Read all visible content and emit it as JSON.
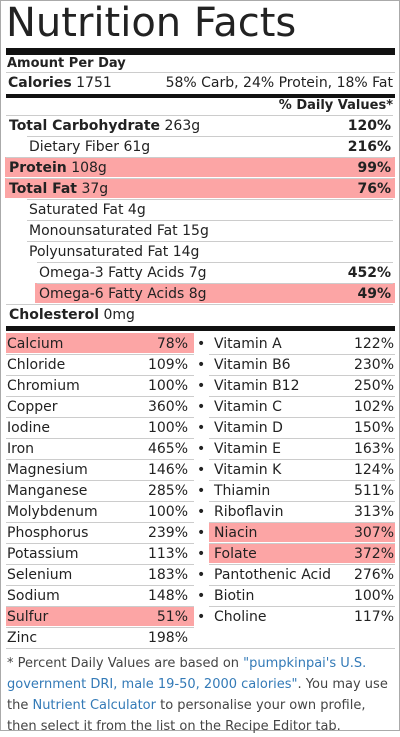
{
  "title": "Nutrition Facts",
  "amount_per": "Amount Per Day",
  "calories": {
    "label": "Calories",
    "value": "1751",
    "breakdown": "58% Carb, 24% Protein, 18% Fat"
  },
  "dv_header": "% Daily Values*",
  "macros": [
    {
      "label": "Total Carbohydrate",
      "amount": "263g",
      "dv": "120%",
      "bold": true,
      "highlight": false,
      "indent": 0
    },
    {
      "label": "Dietary Fiber",
      "amount": "61g",
      "dv": "216%",
      "bold": false,
      "highlight": false,
      "indent": 1
    },
    {
      "label": "Protein",
      "amount": "108g",
      "dv": "99%",
      "bold": true,
      "highlight": true,
      "indent": 0
    },
    {
      "label": "Total Fat",
      "amount": "37g",
      "dv": "76%",
      "bold": true,
      "highlight": true,
      "indent": 0
    },
    {
      "label": "Saturated Fat",
      "amount": "4g",
      "dv": "",
      "bold": false,
      "highlight": false,
      "indent": 1
    },
    {
      "label": "Monounsaturated Fat",
      "amount": "15g",
      "dv": "",
      "bold": false,
      "highlight": false,
      "indent": 1
    },
    {
      "label": "Polyunsaturated Fat",
      "amount": "14g",
      "dv": "",
      "bold": false,
      "highlight": false,
      "indent": 1
    },
    {
      "label": "Omega-3 Fatty Acids",
      "amount": "7g",
      "dv": "452%",
      "bold": false,
      "highlight": false,
      "indent": 2
    },
    {
      "label": "Omega-6 Fatty Acids",
      "amount": "8g",
      "dv": "49%",
      "bold": false,
      "highlight": true,
      "indent": 2
    },
    {
      "label": "Cholesterol",
      "amount": "0mg",
      "dv": "",
      "bold": true,
      "highlight": false,
      "indent": 0
    }
  ],
  "minerals": [
    {
      "name": "Calcium",
      "dv": "78%",
      "highlight": true
    },
    {
      "name": "Chloride",
      "dv": "109%",
      "highlight": false
    },
    {
      "name": "Chromium",
      "dv": "100%",
      "highlight": false
    },
    {
      "name": "Copper",
      "dv": "360%",
      "highlight": false
    },
    {
      "name": "Iodine",
      "dv": "100%",
      "highlight": false
    },
    {
      "name": "Iron",
      "dv": "465%",
      "highlight": false
    },
    {
      "name": "Magnesium",
      "dv": "146%",
      "highlight": false
    },
    {
      "name": "Manganese",
      "dv": "285%",
      "highlight": false
    },
    {
      "name": "Molybdenum",
      "dv": "100%",
      "highlight": false
    },
    {
      "name": "Phosphorus",
      "dv": "239%",
      "highlight": false
    },
    {
      "name": "Potassium",
      "dv": "113%",
      "highlight": false
    },
    {
      "name": "Selenium",
      "dv": "183%",
      "highlight": false
    },
    {
      "name": "Sodium",
      "dv": "148%",
      "highlight": false
    },
    {
      "name": "Sulfur",
      "dv": "51%",
      "highlight": true
    },
    {
      "name": "Zinc",
      "dv": "198%",
      "highlight": false
    }
  ],
  "vitamins": [
    {
      "name": "Vitamin A",
      "dv": "122%",
      "highlight": false
    },
    {
      "name": "Vitamin B6",
      "dv": "230%",
      "highlight": false
    },
    {
      "name": "Vitamin B12",
      "dv": "250%",
      "highlight": false
    },
    {
      "name": "Vitamin C",
      "dv": "102%",
      "highlight": false
    },
    {
      "name": "Vitamin D",
      "dv": "150%",
      "highlight": false
    },
    {
      "name": "Vitamin E",
      "dv": "163%",
      "highlight": false
    },
    {
      "name": "Vitamin K",
      "dv": "124%",
      "highlight": false
    },
    {
      "name": "Thiamin",
      "dv": "511%",
      "highlight": false
    },
    {
      "name": "Riboflavin",
      "dv": "313%",
      "highlight": false
    },
    {
      "name": "Niacin",
      "dv": "307%",
      "highlight": true
    },
    {
      "name": "Folate",
      "dv": "372%",
      "highlight": true
    },
    {
      "name": "Pantothenic Acid",
      "dv": "276%",
      "highlight": false
    },
    {
      "name": "Biotin",
      "dv": "100%",
      "highlight": false
    },
    {
      "name": "Choline",
      "dv": "117%",
      "highlight": false
    }
  ],
  "bullet": "•",
  "footer": {
    "prefix": "* Percent Daily Values are based on ",
    "link1": "\"pumpkinpai's U.S. government DRI, male 19-50, 2000 calories\"",
    "middle": ". You may use the ",
    "link2": "Nutrient Calculator",
    "suffix": " to personalise your own profile, then select it from the list on the Recipe Editor tab."
  },
  "colors": {
    "highlight": "#fca5a5",
    "link": "#337ab7",
    "rule": "#111111"
  }
}
